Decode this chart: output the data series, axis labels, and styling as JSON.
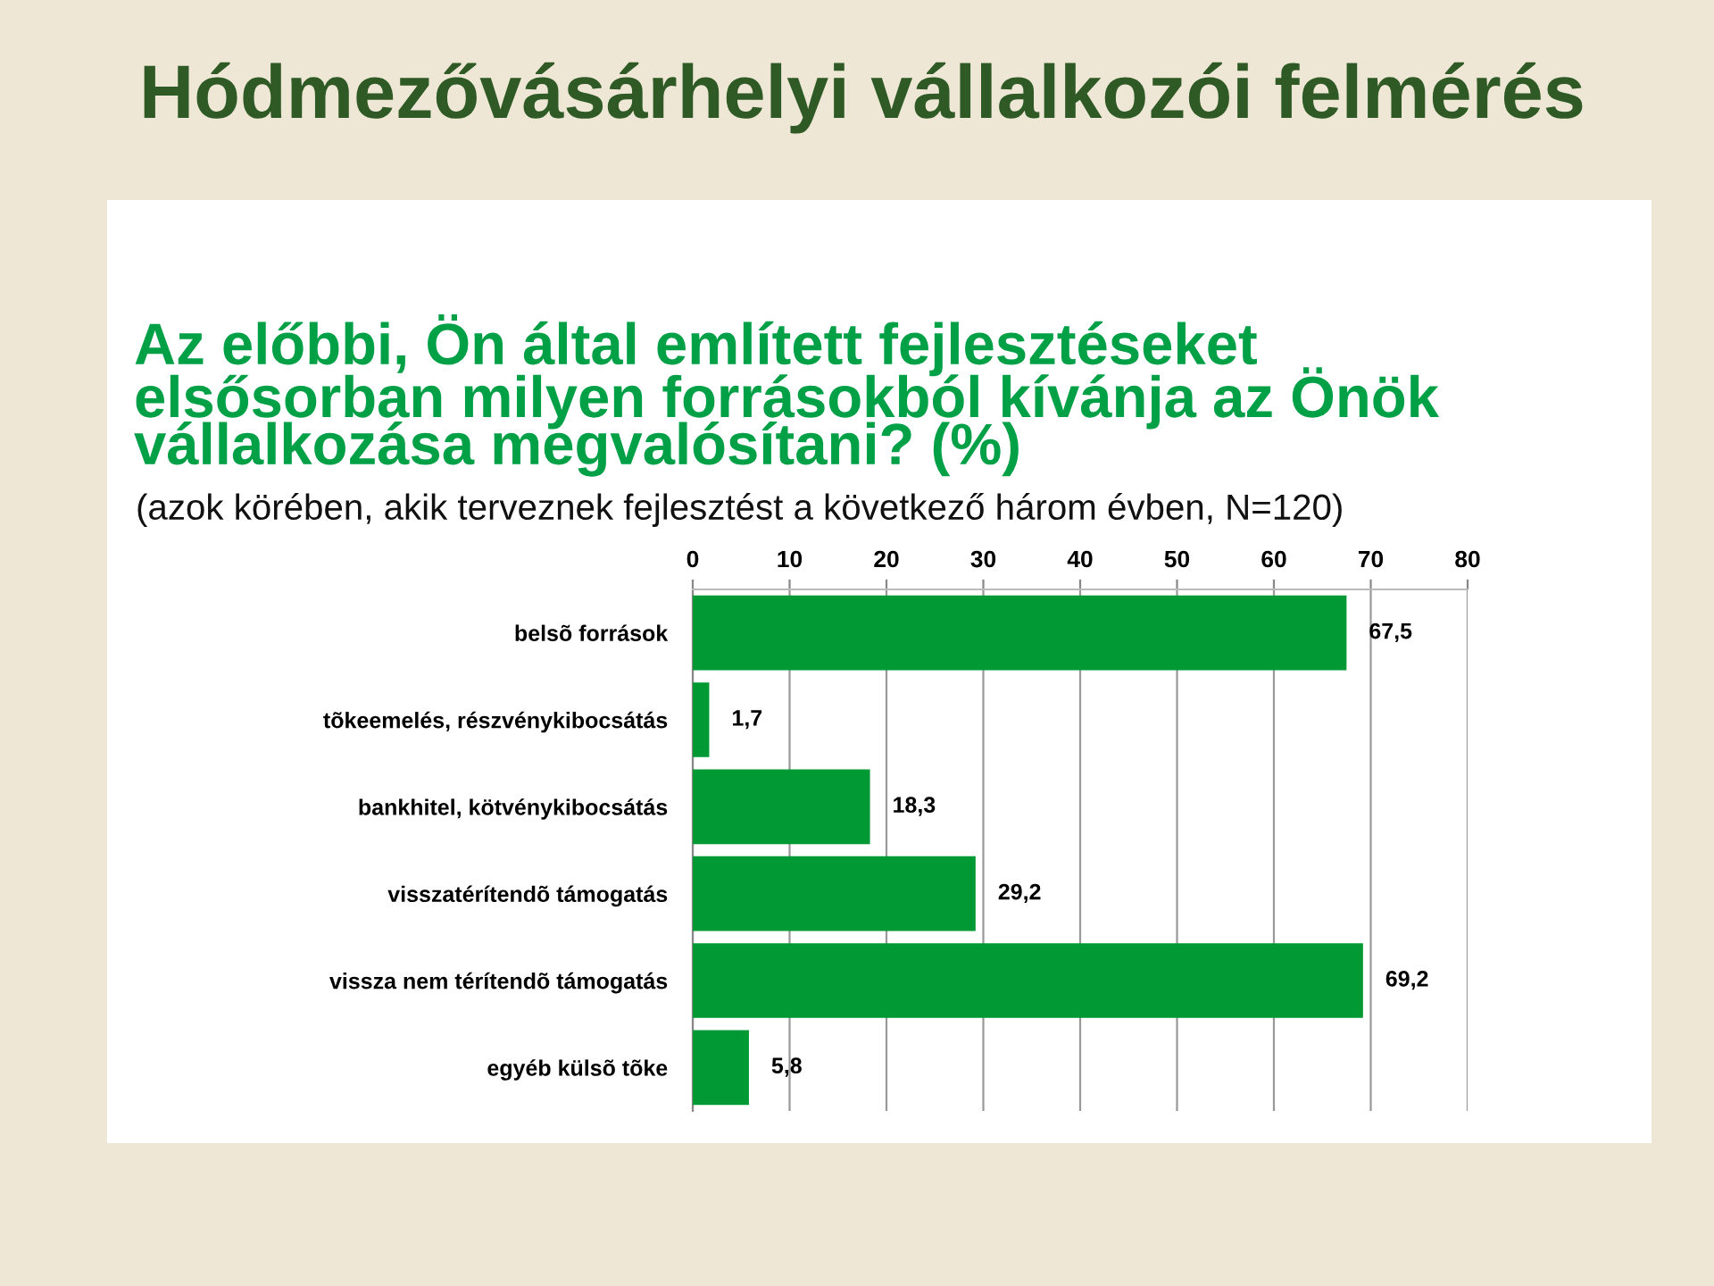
{
  "chart_data": {
    "type": "bar",
    "orientation": "horizontal",
    "title": "Hódmezővásárhelyi vállalkozói felmérés",
    "subtitle": "Az előbbi, Ön által említett fejlesztéseket elsősorban milyen forrásokból kívánja az Önök vállalkozása megvalósítani? (%)",
    "annotations": [
      "(azok körében, akik terveznek fejlesztést a következő három évben, N=120)"
    ],
    "categories": [
      "belsõ források",
      "tõkeemelés, részvénykibocsátás",
      "bankhitel, kötvénykibocsátás",
      "visszatérítendõ támogatás",
      "vissza nem térítendõ támogatás",
      "egyéb külsõ tõke"
    ],
    "values": [
      67.5,
      1.7,
      18.3,
      29.2,
      69.2,
      5.8
    ],
    "value_labels": [
      "67,5",
      "1,7",
      "18,3",
      "29,2",
      "69,2",
      "5,8"
    ],
    "color": "#009933",
    "xlim": [
      0,
      80
    ],
    "xticks": [
      0,
      10,
      20,
      30,
      40,
      50,
      60,
      70,
      80
    ],
    "grid": "x"
  }
}
